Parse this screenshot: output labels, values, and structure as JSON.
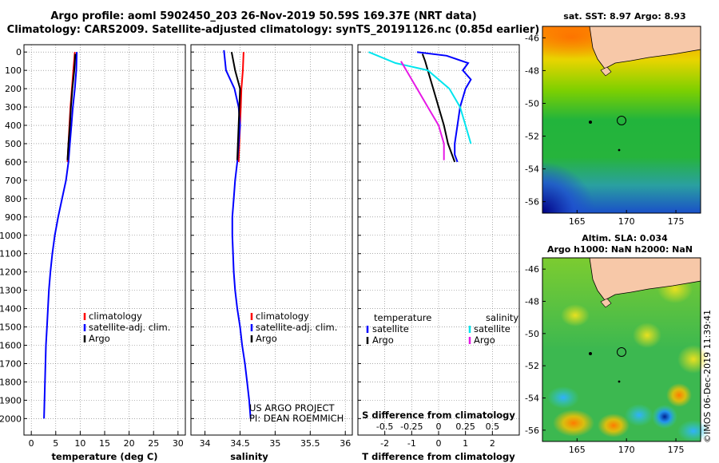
{
  "title": {
    "line1": "Argo profile: aoml 5902450_203 26-Nov-2019 50.59S 169.37E (NRT data)",
    "line2": "Climatology: CARS2009. Satellite-adjusted climatology: synTS_20191126.nc (0.85d earlier)"
  },
  "colors": {
    "climatology": "#ff0000",
    "satellite": "#0000ff",
    "argo": "#000000",
    "satellite_s": "#00e5ee",
    "argo_s": "#e619e6"
  },
  "depth_ticks": [
    "0",
    "100",
    "200",
    "300",
    "400",
    "500",
    "600",
    "700",
    "800",
    "900",
    "1000",
    "1100",
    "1200",
    "1300",
    "1400",
    "1500",
    "1600",
    "1700",
    "1800",
    "1900",
    "2000"
  ],
  "chart_data": [
    {
      "type": "line",
      "name": "temperature",
      "xlabel": "temperature (deg C)",
      "ylabel": "depth",
      "xlim": [
        -1.5,
        31.5
      ],
      "ylim": [
        2090,
        -40
      ],
      "xticks": [
        "0",
        "5",
        "10",
        "15",
        "20",
        "25",
        "30"
      ],
      "legend_position": "lower-middle",
      "legend": [
        "climatology",
        "satellite-adj. clim.",
        "Argo"
      ],
      "series": [
        {
          "name": "climatology",
          "color_key": "climatology",
          "x": [
            8.9,
            8.6,
            8.3,
            8.0,
            7.8,
            7.6,
            7.4
          ],
          "y": [
            0,
            100,
            200,
            300,
            400,
            500,
            600
          ]
        },
        {
          "name": "satellite-adj. clim.",
          "color_key": "satellite",
          "x": [
            9.3,
            9.2,
            8.9,
            8.5,
            8.2,
            7.9,
            7.6,
            7.1,
            6.3,
            5.5,
            4.8,
            4.3,
            3.9,
            3.6,
            3.4,
            3.2,
            3.0,
            2.9,
            2.8,
            2.7,
            2.6
          ],
          "y": [
            0,
            100,
            200,
            300,
            400,
            500,
            600,
            700,
            800,
            900,
            1000,
            1100,
            1200,
            1300,
            1400,
            1500,
            1600,
            1700,
            1800,
            1900,
            2000
          ]
        },
        {
          "name": "Argo",
          "color_key": "argo",
          "x": [
            9.0,
            8.8,
            8.4,
            8.1,
            7.9,
            7.6,
            7.4
          ],
          "y": [
            10,
            100,
            200,
            300,
            400,
            500,
            590
          ]
        }
      ]
    },
    {
      "type": "line",
      "name": "salinity",
      "xlabel": "salinity",
      "ylabel": "depth",
      "xlim": [
        33.8,
        36.1
      ],
      "ylim": [
        2090,
        -40
      ],
      "xticks": [
        "34",
        "34.5",
        "35",
        "35.5",
        "36"
      ],
      "legend_position": "lower-middle",
      "legend": [
        "climatology",
        "satellite-adj. clim.",
        "Argo"
      ],
      "annotation": [
        "US ARGO PROJECT",
        "PI: DEAN ROEMMICH"
      ],
      "series": [
        {
          "name": "climatology",
          "color_key": "climatology",
          "x": [
            34.55,
            34.54,
            34.52,
            34.51,
            34.5,
            34.49,
            34.48
          ],
          "y": [
            0,
            100,
            200,
            300,
            400,
            500,
            600
          ]
        },
        {
          "name": "satellite-adj. clim.",
          "color_key": "satellite",
          "x": [
            34.27,
            34.3,
            34.42,
            34.48,
            34.5,
            34.48,
            34.46,
            34.43,
            34.41,
            34.39,
            34.39,
            34.4,
            34.41,
            34.43,
            34.46,
            34.5,
            34.53,
            34.57,
            34.6,
            34.63,
            34.65
          ],
          "y": [
            -10,
            100,
            200,
            300,
            400,
            500,
            600,
            700,
            800,
            900,
            1000,
            1100,
            1200,
            1300,
            1400,
            1500,
            1600,
            1700,
            1800,
            1900,
            2000
          ]
        },
        {
          "name": "Argo",
          "color_key": "argo",
          "x": [
            34.38,
            34.43,
            34.5,
            34.49,
            34.48,
            34.47,
            34.46
          ],
          "y": [
            0,
            100,
            200,
            300,
            400,
            500,
            590
          ]
        }
      ]
    },
    {
      "type": "line",
      "name": "differences",
      "xlabel": "T difference from climatology",
      "ylabel": "depth",
      "xlim": [
        -3,
        3
      ],
      "ylim": [
        2090,
        -40
      ],
      "xticks": [
        "-2",
        "-1",
        "0",
        "1",
        "2"
      ],
      "top_axis_label": "S difference from climatology",
      "top_ticks": [
        "-0.5",
        "-0.25",
        "0",
        "0.25",
        "0.5"
      ],
      "top_xlim": [
        -0.75,
        0.75
      ],
      "legend_position": "lower",
      "legend_t": [
        "temperature",
        "satellite",
        "Argo"
      ],
      "legend_s": [
        "salinity",
        "satellite",
        "Argo"
      ],
      "series": [
        {
          "name": "T satellite",
          "color_key": "satellite",
          "x": [
            -0.8,
            0.3,
            1.1,
            0.9,
            1.2,
            1.0,
            0.9,
            0.8,
            0.7,
            0.6,
            0.6,
            0.7
          ],
          "y": [
            0,
            20,
            60,
            100,
            150,
            200,
            250,
            300,
            400,
            500,
            560,
            600
          ]
        },
        {
          "name": "T Argo",
          "color_key": "argo",
          "x": [
            -0.6,
            -0.5,
            -0.4,
            -0.2,
            0.0,
            0.2,
            0.35,
            0.5,
            0.6
          ],
          "y": [
            10,
            50,
            100,
            200,
            300,
            400,
            500,
            560,
            600
          ]
        },
        {
          "name": "S satellite",
          "color_key": "satellite_s",
          "x": [
            -0.65,
            -0.4,
            -0.1,
            0.1,
            0.2,
            0.25,
            0.3
          ],
          "y": [
            0,
            60,
            100,
            200,
            300,
            400,
            500
          ]
        },
        {
          "name": "S Argo",
          "color_key": "argo_s",
          "x": [
            -0.35,
            -0.3,
            -0.2,
            -0.1,
            0.0,
            0.05,
            0.05
          ],
          "y": [
            50,
            100,
            200,
            300,
            400,
            500,
            590
          ]
        }
      ]
    },
    {
      "type": "heatmap",
      "name": "SST map",
      "title": "sat. SST: 8.97 Argo: 8.93",
      "yticks": [
        "-46",
        "-48",
        "-50",
        "-52",
        "-54",
        "-56"
      ],
      "xticks": [
        "165",
        "170",
        "175"
      ]
    },
    {
      "type": "heatmap",
      "name": "SLA map",
      "title": "Altim. SLA: 0.034",
      "subtitle": "Argo h1000: NaN h2000: NaN",
      "yticks": [
        "-46",
        "-48",
        "-50",
        "-52",
        "-54",
        "-56"
      ],
      "xticks": [
        "165",
        "170",
        "175"
      ]
    }
  ],
  "credit": "©IMOS 06-Dec-2019 11:39:41"
}
